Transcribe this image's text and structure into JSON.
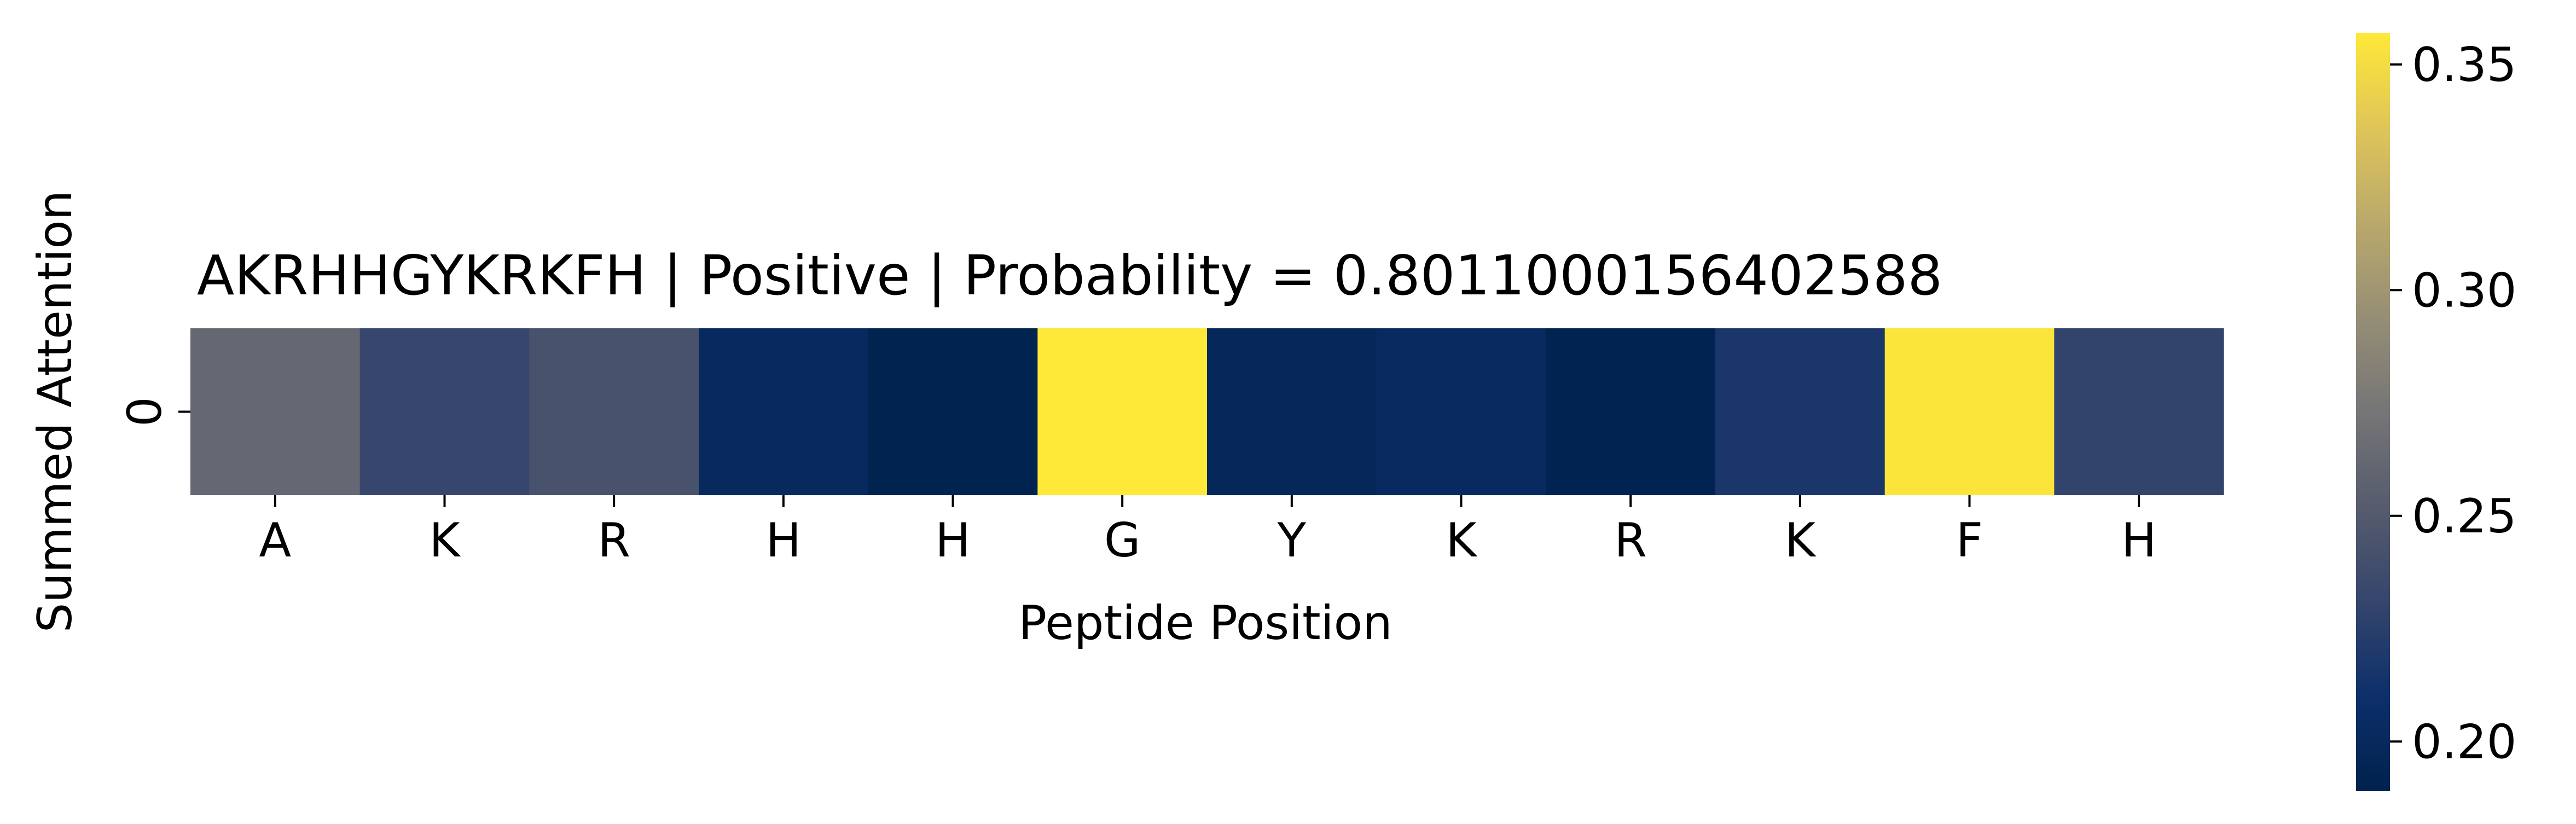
{
  "chart_data": {
    "type": "heatmap",
    "title": "AKRHHGYKRKFH | Positive | Probability = 0.8011000156402588",
    "xlabel": "Peptide Position",
    "ylabel": "Summed Attention",
    "x_categories": [
      "A",
      "K",
      "R",
      "H",
      "H",
      "G",
      "Y",
      "K",
      "R",
      "K",
      "F",
      "H"
    ],
    "y_categories": [
      "0"
    ],
    "values": [
      [
        0.262,
        0.232,
        0.243,
        0.2,
        0.19,
        0.357,
        0.197,
        0.202,
        0.191,
        0.217,
        0.355,
        0.23
      ]
    ],
    "colormap": "cividis",
    "colorbar": {
      "min": 0.189,
      "max": 0.357,
      "ticks": [
        0.2,
        0.25,
        0.3,
        0.35
      ],
      "tick_labels": [
        "0.20",
        "0.25",
        "0.30",
        "0.35"
      ]
    },
    "grid": false,
    "legend": "colorbar-right"
  }
}
